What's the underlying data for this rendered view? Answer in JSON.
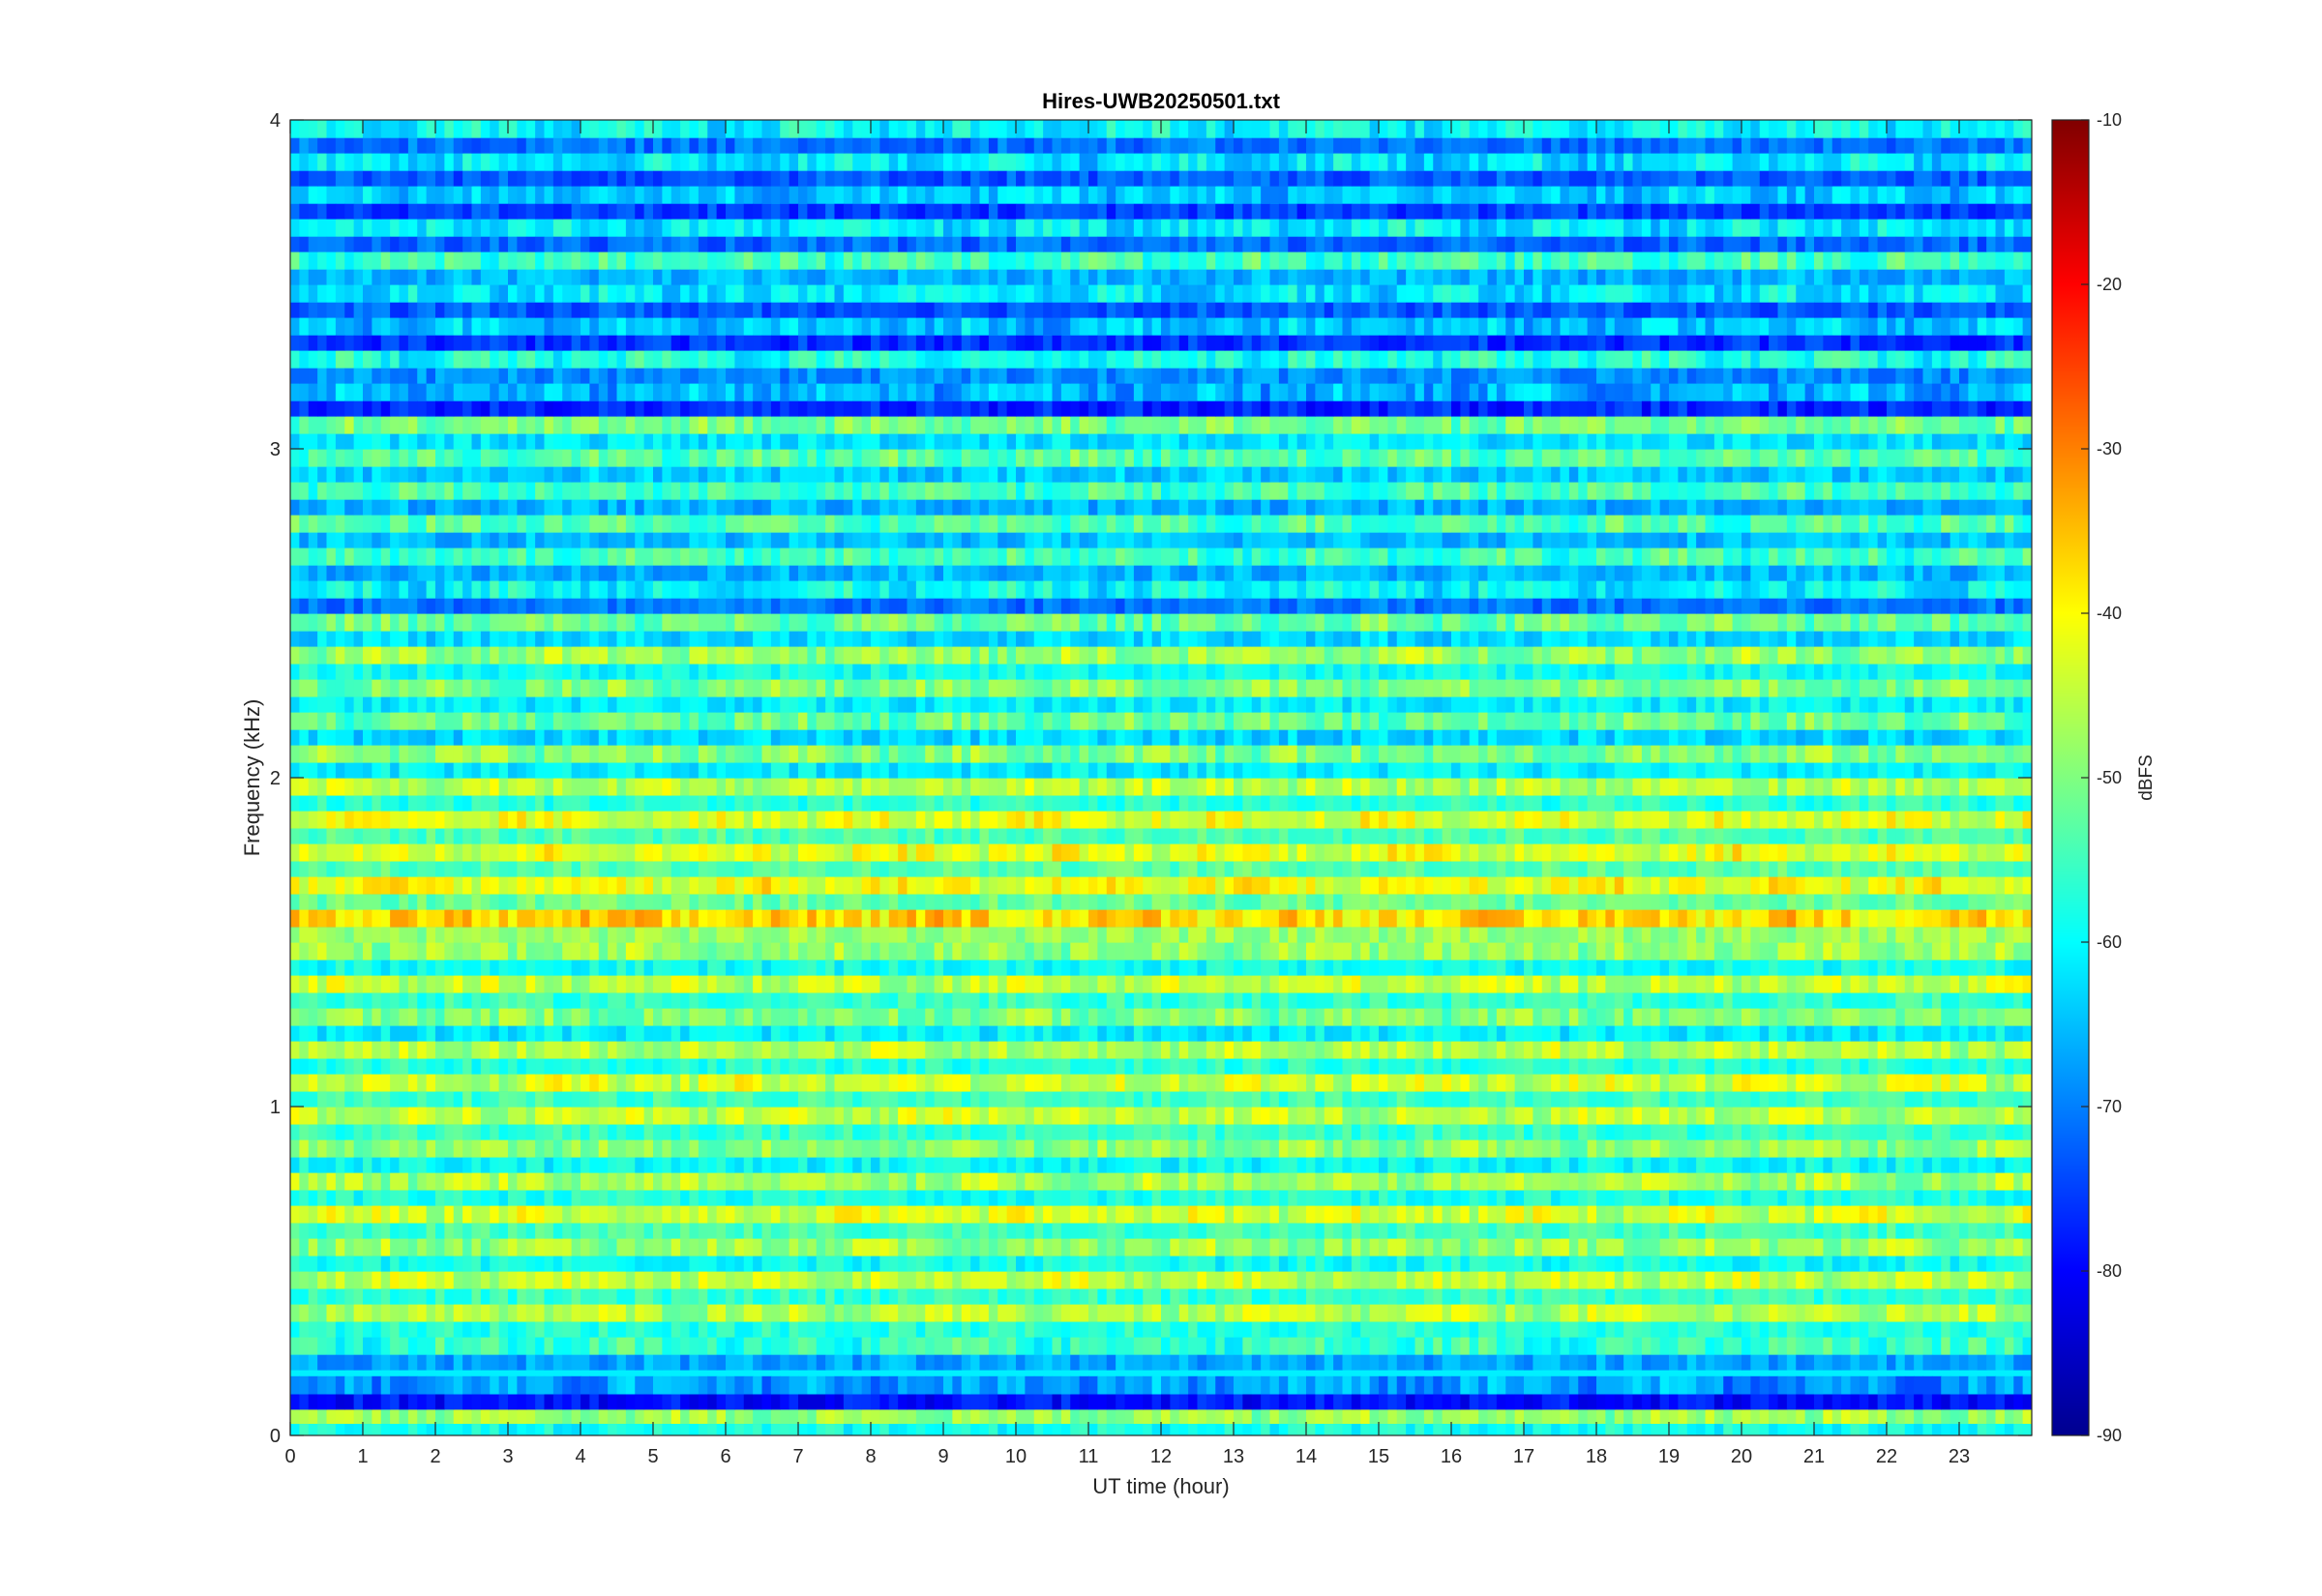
{
  "chart_data": {
    "type": "heatmap",
    "title": "Hires-UWB20250501.txt",
    "xlabel": "UT time (hour)",
    "ylabel": "Frequency (kHz)",
    "xlim": [
      0,
      24
    ],
    "ylim": [
      0,
      4
    ],
    "xticks": [
      0,
      1,
      2,
      3,
      4,
      5,
      6,
      7,
      8,
      9,
      10,
      11,
      12,
      13,
      14,
      15,
      16,
      17,
      18,
      19,
      20,
      21,
      22,
      23
    ],
    "yticks": [
      0,
      1,
      2,
      3,
      4
    ],
    "colorbar": {
      "label": "dBFS",
      "clim": [
        -90,
        -10
      ],
      "ticks": [
        -10,
        -20,
        -30,
        -40,
        -50,
        -60,
        -70,
        -80,
        -90
      ],
      "colormap": "jet"
    },
    "bands": [
      {
        "f": 0.04,
        "dbfs": -48
      },
      {
        "f": 0.13,
        "dbfs": -68
      },
      {
        "f": 0.25,
        "dbfs": -56
      },
      {
        "f": 0.35,
        "dbfs": -46
      },
      {
        "f": 0.45,
        "dbfs": -45
      },
      {
        "f": 0.55,
        "dbfs": -48
      },
      {
        "f": 0.65,
        "dbfs": -44
      },
      {
        "f": 0.75,
        "dbfs": -47
      },
      {
        "f": 0.85,
        "dbfs": -49
      },
      {
        "f": 0.95,
        "dbfs": -45
      },
      {
        "f": 1.05,
        "dbfs": -44
      },
      {
        "f": 1.15,
        "dbfs": -46
      },
      {
        "f": 1.25,
        "dbfs": -50
      },
      {
        "f": 1.35,
        "dbfs": -45
      },
      {
        "f": 1.45,
        "dbfs": -48
      },
      {
        "f": 1.55,
        "dbfs": -37
      },
      {
        "f": 1.65,
        "dbfs": -41
      },
      {
        "f": 1.75,
        "dbfs": -42
      },
      {
        "f": 1.85,
        "dbfs": -43
      },
      {
        "f": 1.95,
        "dbfs": -46
      },
      {
        "f": 2.05,
        "dbfs": -50
      },
      {
        "f": 2.15,
        "dbfs": -52
      },
      {
        "f": 2.25,
        "dbfs": -50
      },
      {
        "f": 2.35,
        "dbfs": -48
      },
      {
        "f": 2.45,
        "dbfs": -52
      },
      {
        "f": 2.55,
        "dbfs": -60
      },
      {
        "f": 2.65,
        "dbfs": -55
      },
      {
        "f": 2.75,
        "dbfs": -54
      },
      {
        "f": 2.85,
        "dbfs": -55
      },
      {
        "f": 2.95,
        "dbfs": -53
      },
      {
        "f": 3.05,
        "dbfs": -51
      },
      {
        "f": 3.15,
        "dbfs": -66
      },
      {
        "f": 3.25,
        "dbfs": -58
      },
      {
        "f": 3.35,
        "dbfs": -65
      },
      {
        "f": 3.45,
        "dbfs": -62
      },
      {
        "f": 3.55,
        "dbfs": -55
      },
      {
        "f": 3.65,
        "dbfs": -61
      },
      {
        "f": 3.75,
        "dbfs": -64
      },
      {
        "f": 3.85,
        "dbfs": -62
      },
      {
        "f": 3.95,
        "dbfs": -60
      }
    ]
  }
}
